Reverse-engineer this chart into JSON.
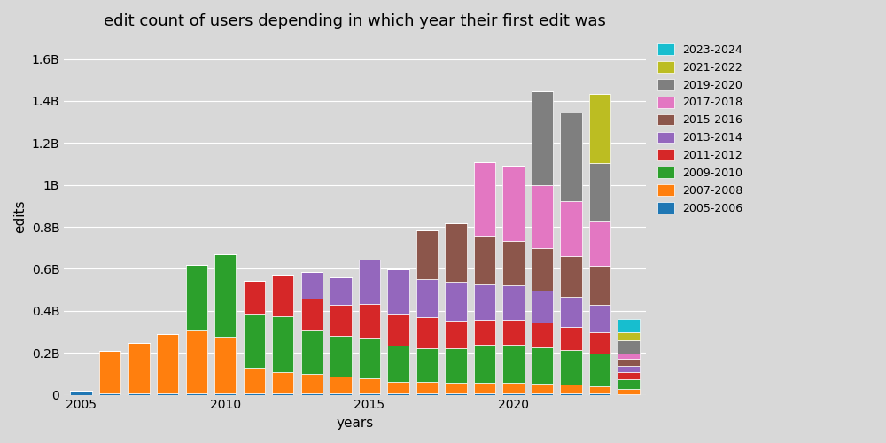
{
  "title": "edit count of users depending in which year their first edit was",
  "xlabel": "years",
  "ylabel": "edits",
  "years": [
    2005,
    2006,
    2007,
    2008,
    2009,
    2010,
    2011,
    2012,
    2013,
    2014,
    2015,
    2016,
    2017,
    2018,
    2019,
    2020,
    2021,
    2022,
    2023,
    2024
  ],
  "cohorts": [
    "2005-2006",
    "2007-2008",
    "2009-2010",
    "2011-2012",
    "2013-2014",
    "2015-2016",
    "2017-2018",
    "2019-2020",
    "2021-2022",
    "2023-2024"
  ],
  "colors": [
    "#1f77b4",
    "#ff7f0e",
    "#2ca02c",
    "#d62728",
    "#9467bd",
    "#8c564b",
    "#e377c2",
    "#7f7f7f",
    "#bcbd22",
    "#17becf"
  ],
  "data": {
    "2005-2006": [
      20000000,
      8000000,
      8000000,
      8000000,
      8000000,
      8000000,
      8000000,
      8000000,
      8000000,
      8000000,
      8000000,
      8000000,
      8000000,
      8000000,
      8000000,
      8000000,
      8000000,
      8000000,
      5000000,
      3000000
    ],
    "2007-2008": [
      0,
      200000000,
      240000000,
      280000000,
      300000000,
      270000000,
      120000000,
      100000000,
      90000000,
      80000000,
      70000000,
      55000000,
      55000000,
      50000000,
      50000000,
      50000000,
      45000000,
      40000000,
      35000000,
      25000000
    ],
    "2009-2010": [
      0,
      0,
      0,
      0,
      310000000,
      390000000,
      260000000,
      265000000,
      210000000,
      195000000,
      190000000,
      170000000,
      160000000,
      165000000,
      180000000,
      180000000,
      175000000,
      165000000,
      155000000,
      45000000
    ],
    "2011-2012": [
      0,
      0,
      0,
      0,
      0,
      0,
      155000000,
      200000000,
      150000000,
      145000000,
      165000000,
      155000000,
      145000000,
      130000000,
      120000000,
      120000000,
      115000000,
      110000000,
      105000000,
      35000000
    ],
    "2013-2014": [
      0,
      0,
      0,
      0,
      0,
      0,
      0,
      0,
      125000000,
      130000000,
      210000000,
      210000000,
      185000000,
      185000000,
      170000000,
      165000000,
      155000000,
      145000000,
      130000000,
      30000000
    ],
    "2015-2016": [
      0,
      0,
      0,
      0,
      0,
      0,
      0,
      0,
      0,
      0,
      0,
      0,
      230000000,
      280000000,
      230000000,
      210000000,
      200000000,
      195000000,
      185000000,
      35000000
    ],
    "2017-2018": [
      0,
      0,
      0,
      0,
      0,
      0,
      0,
      0,
      0,
      0,
      0,
      0,
      0,
      0,
      350000000,
      360000000,
      300000000,
      260000000,
      210000000,
      25000000
    ],
    "2019-2020": [
      0,
      0,
      0,
      0,
      0,
      0,
      0,
      0,
      0,
      0,
      0,
      0,
      0,
      0,
      0,
      0,
      450000000,
      420000000,
      280000000,
      60000000
    ],
    "2021-2022": [
      0,
      0,
      0,
      0,
      0,
      0,
      0,
      0,
      0,
      0,
      0,
      0,
      0,
      0,
      0,
      0,
      0,
      0,
      330000000,
      40000000
    ],
    "2023-2024": [
      0,
      0,
      0,
      0,
      0,
      0,
      0,
      0,
      0,
      0,
      0,
      0,
      0,
      0,
      0,
      0,
      0,
      0,
      0,
      65000000
    ]
  },
  "background_color": "#d8d8d8",
  "ylim": [
    0,
    1700000000
  ],
  "yticks": [
    0,
    200000000,
    400000000,
    600000000,
    800000000,
    1000000000,
    1200000000,
    1400000000,
    1600000000
  ],
  "ytick_labels": [
    "0",
    "0.2B",
    "0.4B",
    "0.6B",
    "0.8B",
    "1B",
    "1.2B",
    "1.4B",
    "1.6B"
  ],
  "xticks": [
    2005,
    2010,
    2015,
    2020
  ],
  "bar_width": 0.75
}
